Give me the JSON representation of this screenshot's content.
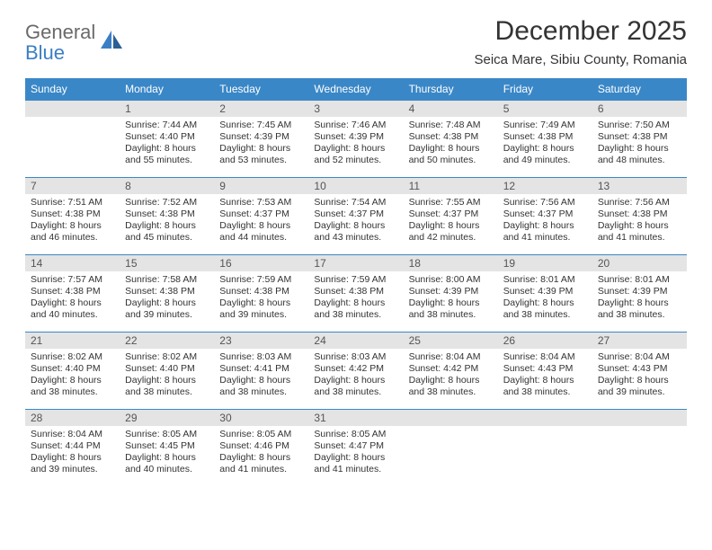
{
  "brand": {
    "word1": "General",
    "word2": "Blue"
  },
  "title": "December 2025",
  "location": "Seica Mare, Sibiu County, Romania",
  "colors": {
    "header_bg": "#3a87c7",
    "header_text": "#ffffff",
    "daybar_bg": "#e4e4e4",
    "daybar_text": "#555555",
    "body_text": "#333333",
    "rule": "#3a87c7",
    "logo_gray": "#6a6a6a",
    "logo_blue": "#3a7fc4"
  },
  "typography": {
    "title_fontsize": 30,
    "location_fontsize": 15,
    "header_fontsize": 12,
    "cell_fontsize": 10.5
  },
  "weekdays": [
    "Sunday",
    "Monday",
    "Tuesday",
    "Wednesday",
    "Thursday",
    "Friday",
    "Saturday"
  ],
  "weeks": [
    [
      {
        "n": ""
      },
      {
        "n": "1",
        "sunrise": "7:44 AM",
        "sunset": "4:40 PM",
        "daylight": "8 hours and 55 minutes."
      },
      {
        "n": "2",
        "sunrise": "7:45 AM",
        "sunset": "4:39 PM",
        "daylight": "8 hours and 53 minutes."
      },
      {
        "n": "3",
        "sunrise": "7:46 AM",
        "sunset": "4:39 PM",
        "daylight": "8 hours and 52 minutes."
      },
      {
        "n": "4",
        "sunrise": "7:48 AM",
        "sunset": "4:38 PM",
        "daylight": "8 hours and 50 minutes."
      },
      {
        "n": "5",
        "sunrise": "7:49 AM",
        "sunset": "4:38 PM",
        "daylight": "8 hours and 49 minutes."
      },
      {
        "n": "6",
        "sunrise": "7:50 AM",
        "sunset": "4:38 PM",
        "daylight": "8 hours and 48 minutes."
      }
    ],
    [
      {
        "n": "7",
        "sunrise": "7:51 AM",
        "sunset": "4:38 PM",
        "daylight": "8 hours and 46 minutes."
      },
      {
        "n": "8",
        "sunrise": "7:52 AM",
        "sunset": "4:38 PM",
        "daylight": "8 hours and 45 minutes."
      },
      {
        "n": "9",
        "sunrise": "7:53 AM",
        "sunset": "4:37 PM",
        "daylight": "8 hours and 44 minutes."
      },
      {
        "n": "10",
        "sunrise": "7:54 AM",
        "sunset": "4:37 PM",
        "daylight": "8 hours and 43 minutes."
      },
      {
        "n": "11",
        "sunrise": "7:55 AM",
        "sunset": "4:37 PM",
        "daylight": "8 hours and 42 minutes."
      },
      {
        "n": "12",
        "sunrise": "7:56 AM",
        "sunset": "4:37 PM",
        "daylight": "8 hours and 41 minutes."
      },
      {
        "n": "13",
        "sunrise": "7:56 AM",
        "sunset": "4:38 PM",
        "daylight": "8 hours and 41 minutes."
      }
    ],
    [
      {
        "n": "14",
        "sunrise": "7:57 AM",
        "sunset": "4:38 PM",
        "daylight": "8 hours and 40 minutes."
      },
      {
        "n": "15",
        "sunrise": "7:58 AM",
        "sunset": "4:38 PM",
        "daylight": "8 hours and 39 minutes."
      },
      {
        "n": "16",
        "sunrise": "7:59 AM",
        "sunset": "4:38 PM",
        "daylight": "8 hours and 39 minutes."
      },
      {
        "n": "17",
        "sunrise": "7:59 AM",
        "sunset": "4:38 PM",
        "daylight": "8 hours and 38 minutes."
      },
      {
        "n": "18",
        "sunrise": "8:00 AM",
        "sunset": "4:39 PM",
        "daylight": "8 hours and 38 minutes."
      },
      {
        "n": "19",
        "sunrise": "8:01 AM",
        "sunset": "4:39 PM",
        "daylight": "8 hours and 38 minutes."
      },
      {
        "n": "20",
        "sunrise": "8:01 AM",
        "sunset": "4:39 PM",
        "daylight": "8 hours and 38 minutes."
      }
    ],
    [
      {
        "n": "21",
        "sunrise": "8:02 AM",
        "sunset": "4:40 PM",
        "daylight": "8 hours and 38 minutes."
      },
      {
        "n": "22",
        "sunrise": "8:02 AM",
        "sunset": "4:40 PM",
        "daylight": "8 hours and 38 minutes."
      },
      {
        "n": "23",
        "sunrise": "8:03 AM",
        "sunset": "4:41 PM",
        "daylight": "8 hours and 38 minutes."
      },
      {
        "n": "24",
        "sunrise": "8:03 AM",
        "sunset": "4:42 PM",
        "daylight": "8 hours and 38 minutes."
      },
      {
        "n": "25",
        "sunrise": "8:04 AM",
        "sunset": "4:42 PM",
        "daylight": "8 hours and 38 minutes."
      },
      {
        "n": "26",
        "sunrise": "8:04 AM",
        "sunset": "4:43 PM",
        "daylight": "8 hours and 38 minutes."
      },
      {
        "n": "27",
        "sunrise": "8:04 AM",
        "sunset": "4:43 PM",
        "daylight": "8 hours and 39 minutes."
      }
    ],
    [
      {
        "n": "28",
        "sunrise": "8:04 AM",
        "sunset": "4:44 PM",
        "daylight": "8 hours and 39 minutes."
      },
      {
        "n": "29",
        "sunrise": "8:05 AM",
        "sunset": "4:45 PM",
        "daylight": "8 hours and 40 minutes."
      },
      {
        "n": "30",
        "sunrise": "8:05 AM",
        "sunset": "4:46 PM",
        "daylight": "8 hours and 41 minutes."
      },
      {
        "n": "31",
        "sunrise": "8:05 AM",
        "sunset": "4:47 PM",
        "daylight": "8 hours and 41 minutes."
      },
      {
        "n": ""
      },
      {
        "n": ""
      },
      {
        "n": ""
      }
    ]
  ],
  "labels": {
    "sunrise": "Sunrise:",
    "sunset": "Sunset:",
    "daylight": "Daylight:"
  }
}
